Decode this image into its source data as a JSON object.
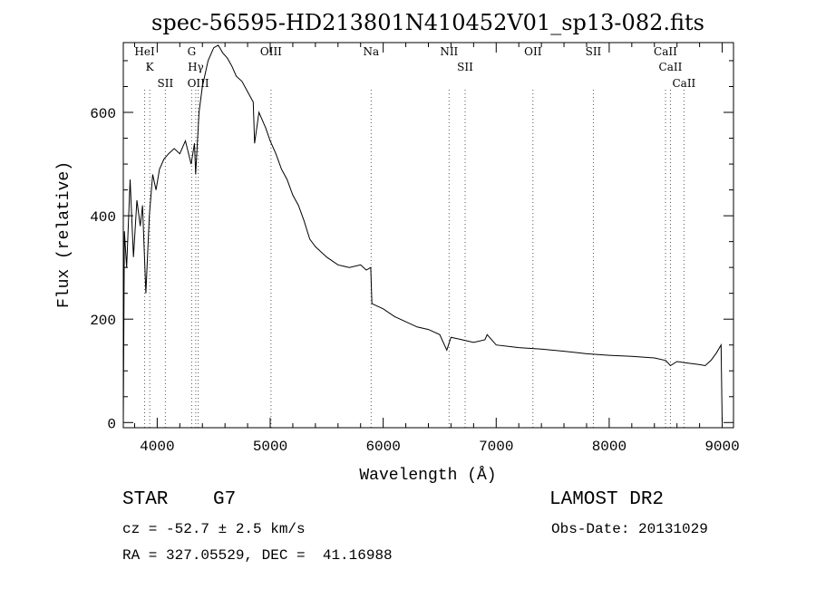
{
  "title": "spec-56595-HD213801N410452V01_sp13-082.fits",
  "footer": {
    "object_class": "STAR",
    "subclass": "G7",
    "survey": "LAMOST DR2",
    "cz": "cz = -52.7 ± 2.5 km/s",
    "obs_date": "Obs-Date: 20131029",
    "coords": "RA = 327.05529, DEC =  41.16988"
  },
  "chart_data": {
    "type": "line",
    "title": "spec-56595-HD213801N410452V01_sp13-082.fits",
    "xlabel": "Wavelength (Å)",
    "ylabel": "Flux (relative)",
    "xlim": [
      3700,
      9100
    ],
    "ylim": [
      -10,
      735
    ],
    "x_ticks": [
      4000,
      5000,
      6000,
      7000,
      8000,
      9000
    ],
    "y_ticks": [
      0,
      200,
      400,
      600
    ],
    "grid": false,
    "series": [
      {
        "x": [
          3700,
          3710,
          3730,
          3760,
          3790,
          3820,
          3850,
          3870,
          3900,
          3930,
          3960,
          3990,
          4020,
          4060,
          4100,
          4150,
          4200,
          4250,
          4300,
          4330,
          4340,
          4370,
          4400,
          4450,
          4500,
          4540,
          4580,
          4620,
          4660,
          4700,
          4750,
          4800,
          4850,
          4862,
          4900,
          4960,
          5000,
          5050,
          5100,
          5150,
          5200,
          5250,
          5300,
          5350,
          5400,
          5500,
          5600,
          5700,
          5800,
          5850,
          5890,
          5900,
          5950,
          6000,
          6100,
          6200,
          6300,
          6400,
          6500,
          6563,
          6600,
          6700,
          6800,
          6900,
          6920,
          7000,
          7200,
          7400,
          7600,
          7800,
          8000,
          8200,
          8400,
          8500,
          8542,
          8600,
          8700,
          8800,
          8850,
          8900,
          8950,
          8990,
          9000
        ],
        "values": [
          0,
          370,
          300,
          470,
          320,
          430,
          380,
          420,
          250,
          400,
          480,
          450,
          490,
          510,
          520,
          530,
          520,
          545,
          500,
          540,
          480,
          600,
          650,
          700,
          725,
          730,
          715,
          705,
          690,
          670,
          660,
          640,
          620,
          540,
          600,
          570,
          545,
          520,
          490,
          470,
          440,
          420,
          390,
          355,
          340,
          320,
          305,
          300,
          305,
          295,
          300,
          230,
          225,
          220,
          205,
          195,
          185,
          180,
          170,
          140,
          165,
          160,
          155,
          160,
          170,
          150,
          145,
          142,
          138,
          133,
          130,
          128,
          125,
          120,
          110,
          118,
          115,
          112,
          110,
          120,
          135,
          150,
          0
        ]
      }
    ],
    "line_markers": [
      {
        "label": "K",
        "x": 3934
      },
      {
        "label": "HeI",
        "x": 3889
      },
      {
        "label": "SII",
        "x": 4072
      },
      {
        "label": "Hγ",
        "x": 4341
      },
      {
        "label": "G",
        "x": 4305
      },
      {
        "label": "OIII",
        "x": 4363
      },
      {
        "label": "OIII",
        "x": 5007
      },
      {
        "label": "Na",
        "x": 5893
      },
      {
        "label": "SII",
        "x": 6725
      },
      {
        "label": "NII",
        "x": 6583
      },
      {
        "label": "OII",
        "x": 7325
      },
      {
        "label": "SII",
        "x": 7860
      },
      {
        "label": "CaII",
        "x": 8662
      },
      {
        "label": "CaII",
        "x": 8542
      },
      {
        "label": "CaII",
        "x": 8498
      }
    ]
  }
}
